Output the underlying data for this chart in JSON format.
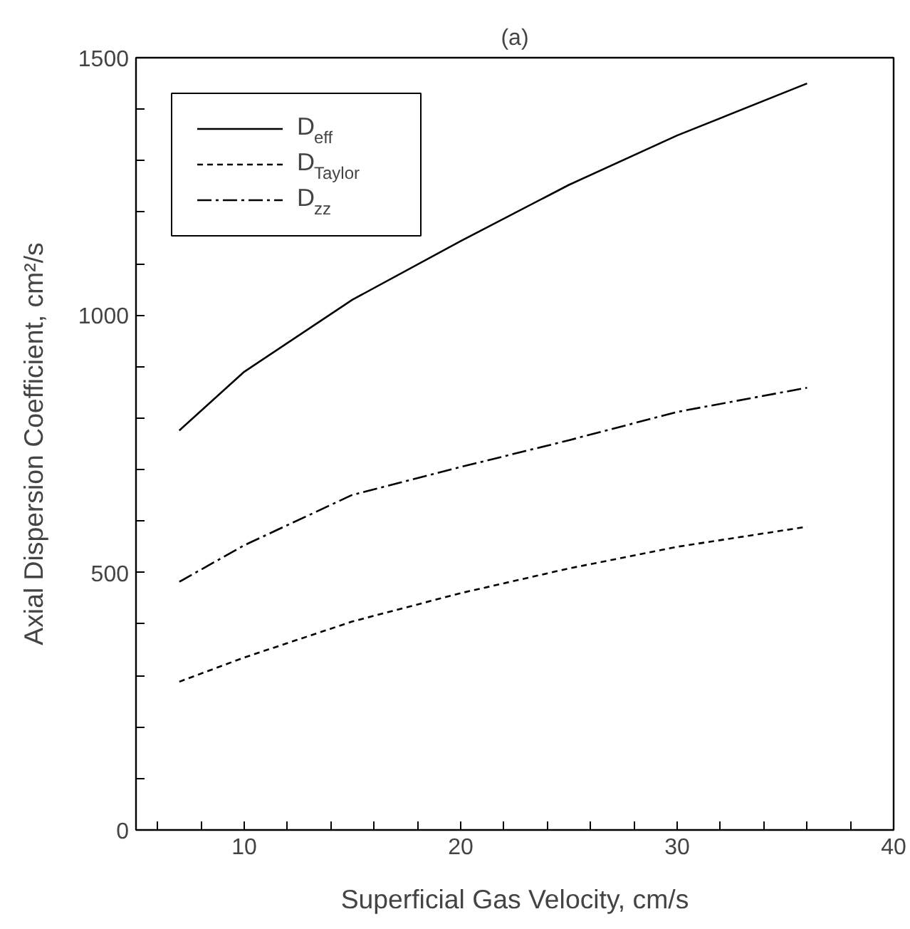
{
  "chart_data": {
    "type": "line",
    "title": "(a)",
    "xlabel": "Superficial Gas Velocity, cm/s",
    "ylabel": "Axial Dispersion Coefficient, cm²/s",
    "x": [
      7,
      10,
      15,
      20,
      25,
      30,
      36
    ],
    "series": [
      {
        "name": "D$_{eff}$",
        "color": "#000000",
        "line_style": "solid",
        "values": [
          776,
          890,
          1030,
          1144,
          1253,
          1349,
          1450
        ]
      },
      {
        "name": "D$_{Taylor}$",
        "color": "#000000",
        "line_style": "dashed",
        "values": [
          288,
          335,
          405,
          460,
          508,
          550,
          589
        ]
      },
      {
        "name": "D$_{zz}$",
        "color": "#000000",
        "line_style": "dashdot",
        "values": [
          482,
          553,
          651,
          705,
          757,
          812,
          859
        ]
      }
    ],
    "xlim": [
      5,
      40
    ],
    "ylim": [
      0,
      1500
    ],
    "xticks": [
      {
        "value": 6,
        "label": null
      },
      {
        "value": 8,
        "label": null
      },
      10,
      {
        "value": 12,
        "label": null
      },
      {
        "value": 14,
        "label": null
      },
      {
        "value": 16,
        "label": null
      },
      {
        "value": 18,
        "label": null
      },
      20,
      {
        "value": 22,
        "label": null
      },
      {
        "value": 24,
        "label": null
      },
      {
        "value": 26,
        "label": null
      },
      {
        "value": 28,
        "label": null
      },
      30,
      {
        "value": 32,
        "label": null
      },
      {
        "value": 34,
        "label": null
      },
      {
        "value": 36,
        "label": null
      },
      {
        "value": 38,
        "label": null
      },
      40
    ],
    "yticks": [
      0,
      {
        "value": 100,
        "label": null
      },
      {
        "value": 200,
        "label": null
      },
      {
        "value": 300,
        "label": null
      },
      {
        "value": 400,
        "label": null
      },
      500,
      {
        "value": 600,
        "label": null
      },
      {
        "value": 700,
        "label": null
      },
      {
        "value": 800,
        "label": null
      },
      {
        "value": 900,
        "label": null
      },
      1000,
      {
        "value": 1100,
        "label": null
      },
      {
        "value": 1200,
        "label": null
      },
      {
        "value": 1300,
        "label": null
      },
      {
        "value": 1400,
        "label": null
      },
      1500
    ],
    "grid": false,
    "legend": "top left"
  }
}
